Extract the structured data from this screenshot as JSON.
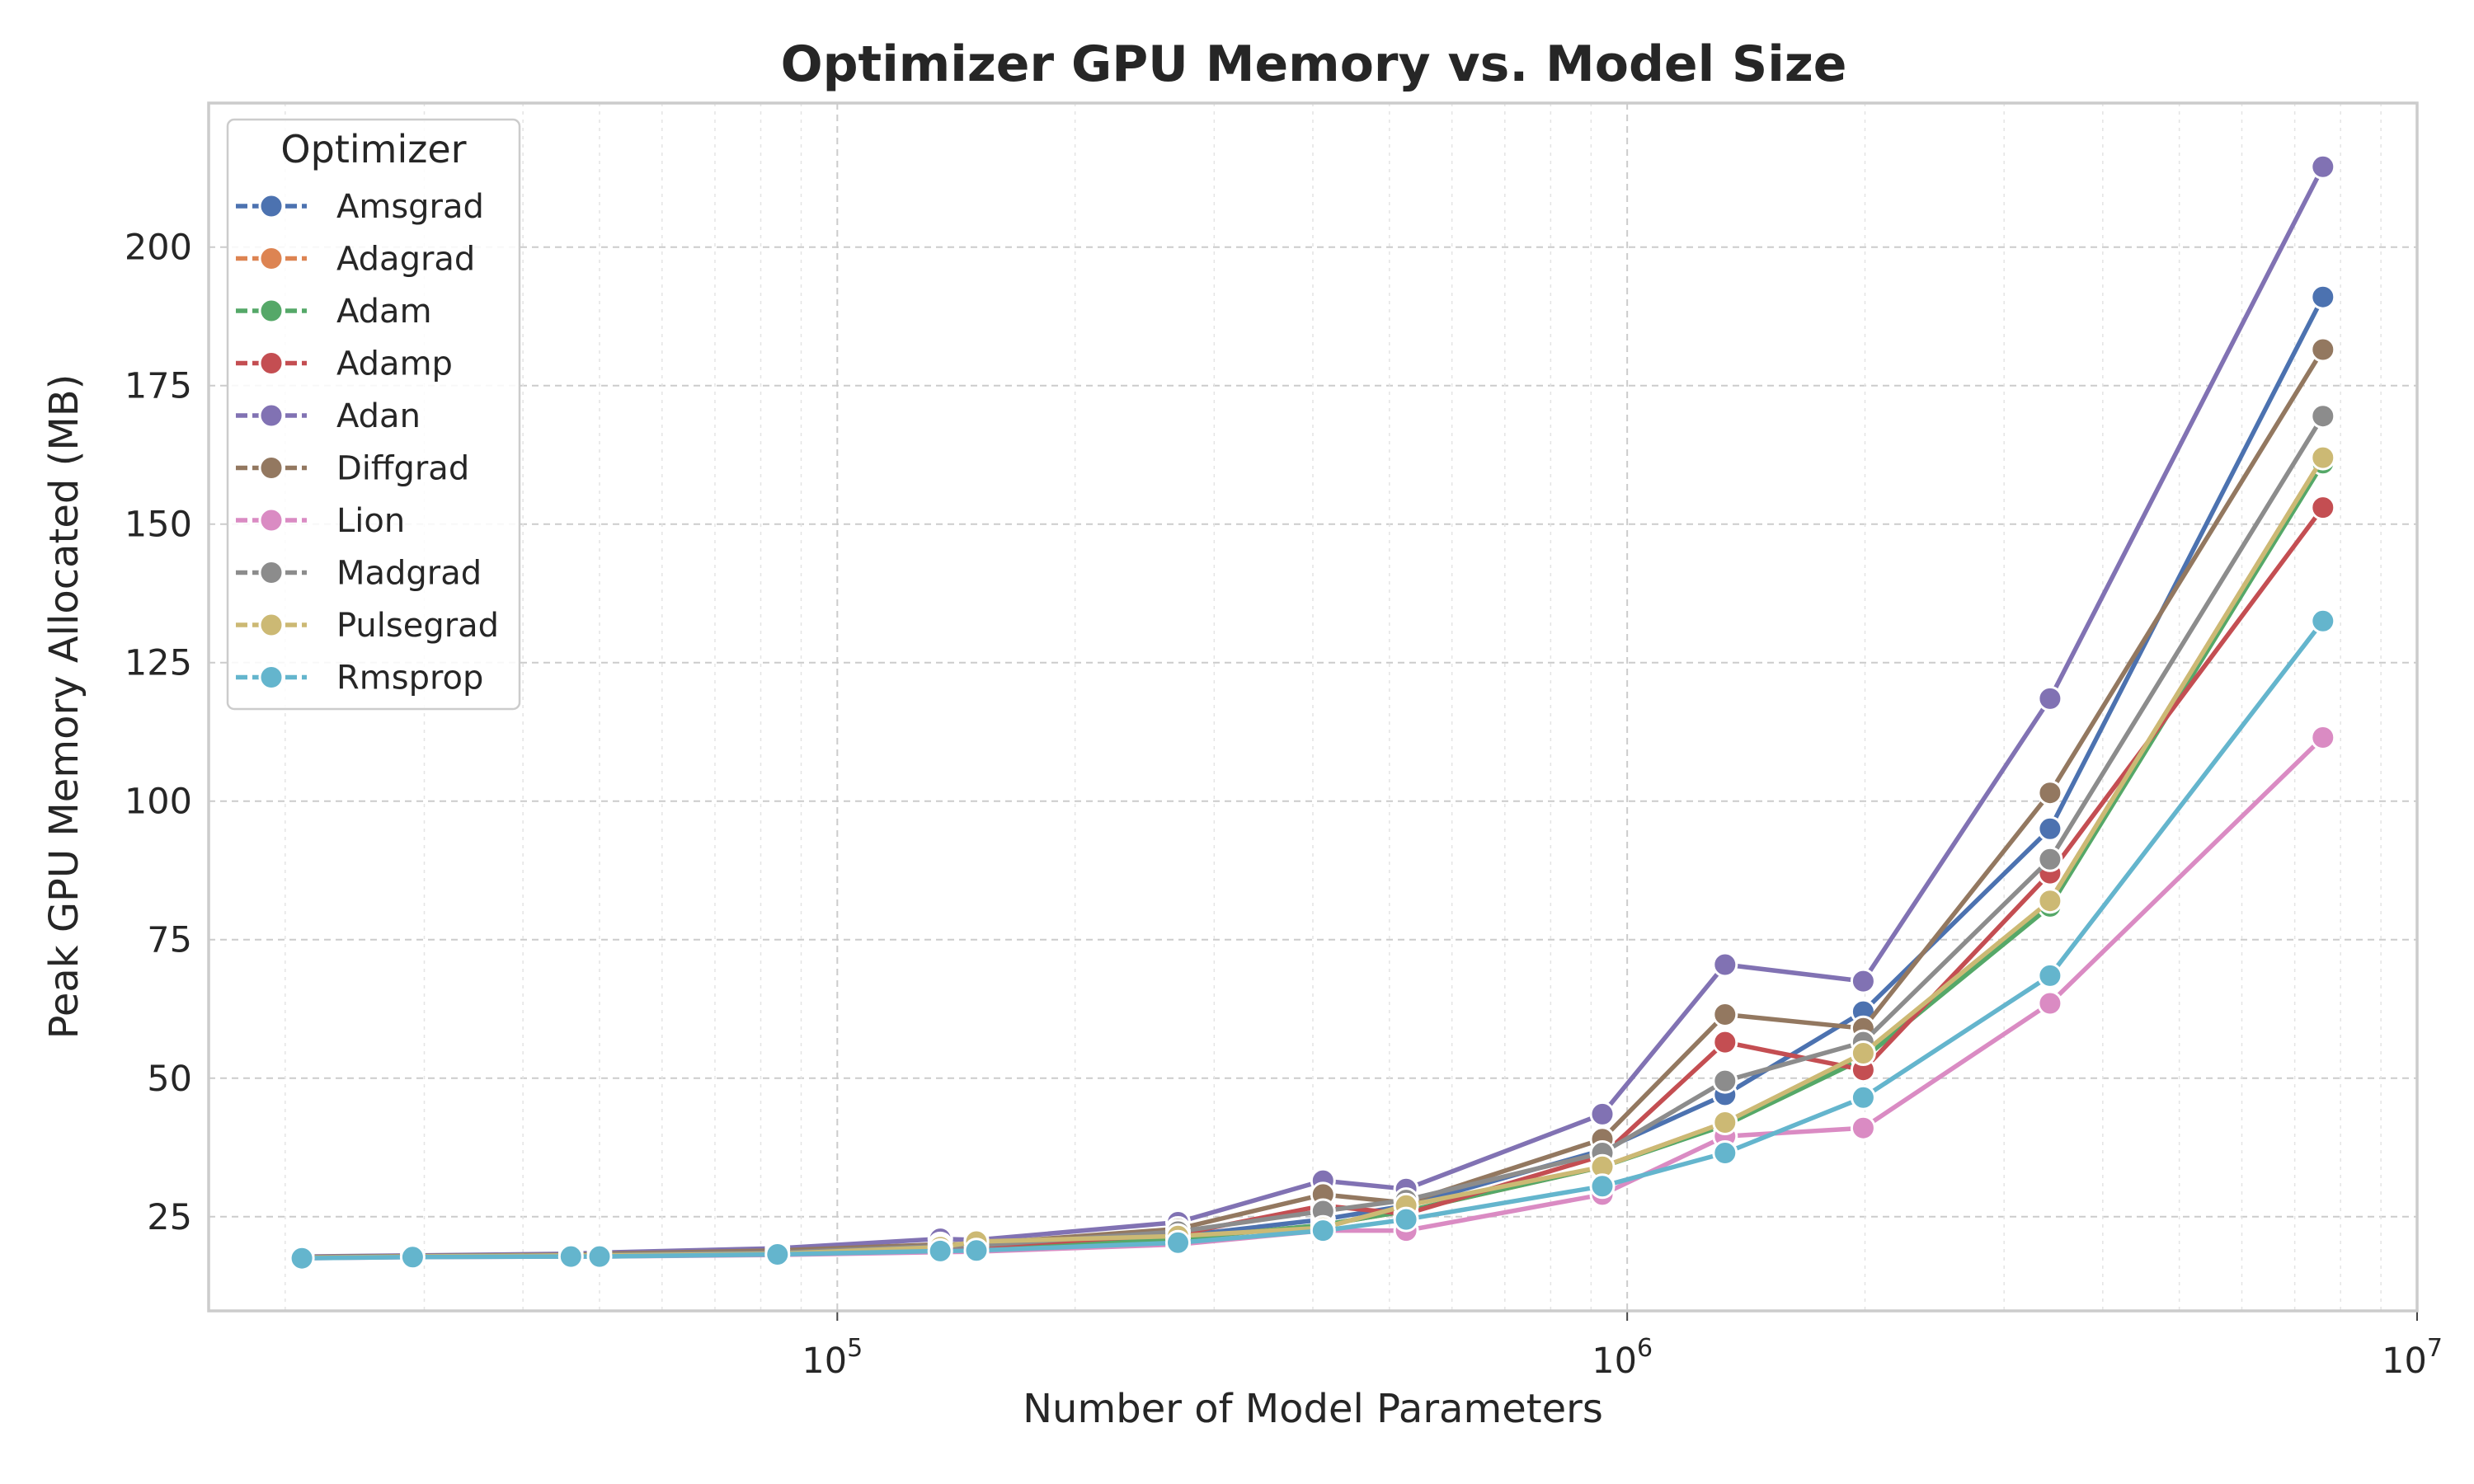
{
  "chart_data": {
    "type": "line",
    "title": "Optimizer GPU Memory vs. Model Size",
    "xlabel": "Number of Model Parameters",
    "ylabel": "Peak GPU Memory Allocated (MB)",
    "x_scale": "log",
    "xlim": [
      16000,
      10000000
    ],
    "ylim": [
      8,
      226
    ],
    "x_ticks": [
      {
        "value": 100000,
        "base": "10",
        "exp": "5"
      },
      {
        "value": 1000000,
        "base": "10",
        "exp": "6"
      },
      {
        "value": 10000000,
        "base": "10",
        "exp": "7"
      }
    ],
    "y_ticks": [
      25,
      50,
      75,
      100,
      125,
      150,
      175,
      200
    ],
    "grid": true,
    "legend": {
      "title": "Optimizer",
      "position": "top-left"
    },
    "x": [
      21000,
      29000,
      46000,
      50000,
      84000,
      135000,
      150000,
      270000,
      412000,
      525000,
      930000,
      1330000,
      1990000,
      3430000,
      7600000
    ],
    "series": [
      {
        "name": "Amsgrad",
        "color": "#4c72b0",
        "values": [
          17.6,
          17.8,
          18.0,
          18.1,
          18.5,
          19.5,
          19.6,
          21.5,
          24.5,
          27.0,
          37.0,
          47.0,
          62.0,
          95.0,
          191.0
        ]
      },
      {
        "name": "Adagrad",
        "color": "#dd8452",
        "values": [
          17.6,
          17.8,
          18.0,
          18.0,
          18.3,
          19.2,
          19.3,
          21.0,
          23.5,
          26.0,
          34.0,
          42.0,
          54.0,
          82.0,
          162.0
        ]
      },
      {
        "name": "Adam",
        "color": "#55a868",
        "values": [
          17.6,
          17.8,
          18.0,
          18.0,
          18.3,
          19.2,
          19.3,
          21.0,
          23.5,
          26.0,
          34.0,
          41.5,
          53.5,
          81.0,
          161.0
        ]
      },
      {
        "name": "Adamp",
        "color": "#c44e52",
        "values": [
          17.6,
          17.8,
          18.0,
          18.1,
          18.5,
          19.5,
          19.6,
          21.8,
          27.0,
          25.5,
          36.0,
          56.5,
          51.5,
          87.0,
          153.0
        ]
      },
      {
        "name": "Adan",
        "color": "#8172b3",
        "values": [
          17.8,
          18.0,
          18.3,
          18.5,
          19.3,
          21.0,
          20.8,
          24.0,
          31.5,
          30.0,
          43.5,
          70.5,
          67.5,
          118.5,
          214.5
        ]
      },
      {
        "name": "Diffgrad",
        "color": "#937860",
        "values": [
          17.7,
          17.9,
          18.1,
          18.3,
          18.9,
          20.0,
          20.1,
          22.8,
          29.0,
          27.5,
          39.0,
          61.5,
          59.0,
          101.5,
          181.5
        ]
      },
      {
        "name": "Lion",
        "color": "#da8bc3",
        "values": [
          17.5,
          17.7,
          17.8,
          17.8,
          18.1,
          18.6,
          18.7,
          20.0,
          22.5,
          22.5,
          29.0,
          39.5,
          41.0,
          63.5,
          111.5
        ]
      },
      {
        "name": "Madgrad",
        "color": "#8c8c8c",
        "values": [
          17.6,
          17.8,
          18.0,
          18.1,
          18.5,
          19.7,
          19.8,
          22.3,
          26.0,
          28.0,
          36.5,
          49.5,
          56.5,
          89.5,
          169.5
        ]
      },
      {
        "name": "Pulsegrad",
        "color": "#ccb974",
        "values": [
          17.6,
          17.8,
          18.0,
          18.0,
          18.3,
          19.5,
          20.5,
          21.5,
          23.0,
          27.0,
          34.0,
          42.0,
          54.5,
          82.0,
          162.0
        ]
      },
      {
        "name": "Rmsprop",
        "color": "#64b5cd",
        "values": [
          17.5,
          17.7,
          17.8,
          17.8,
          18.2,
          18.8,
          18.9,
          20.3,
          22.5,
          24.5,
          30.5,
          36.5,
          46.5,
          68.5,
          132.5
        ]
      }
    ]
  }
}
